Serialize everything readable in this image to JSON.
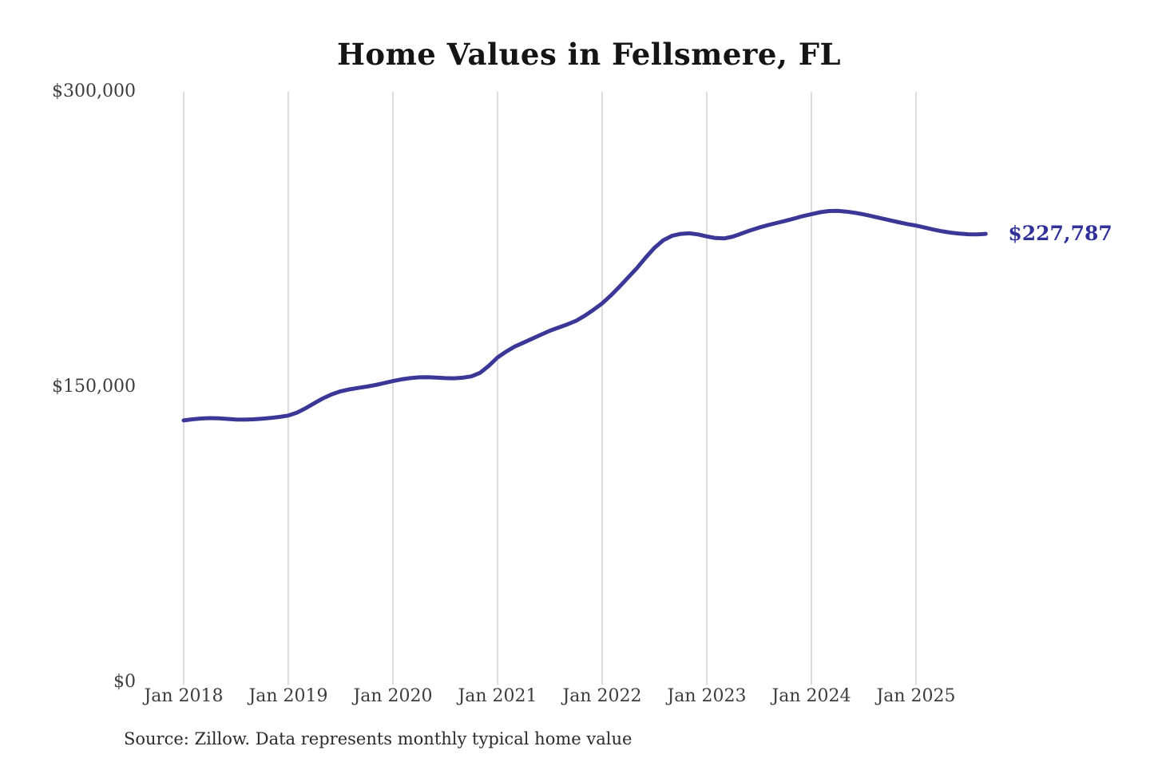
{
  "page": {
    "background": "#ffffff"
  },
  "chart_data": {
    "type": "line",
    "title": "Home Values in Fellsmere, FL",
    "source_note": "Source: Zillow. Data represents monthly typical home value",
    "end_label": "$227,787",
    "end_value": 227787,
    "xlabel": "",
    "ylabel": "",
    "ylim": [
      0,
      300000
    ],
    "grid": "vertical-only",
    "legend_position": "none",
    "colors": {
      "line": "#3a3797",
      "annotation": "#31319a",
      "gridline": "#c9c9c9",
      "tick_label": "#3d3d3d",
      "title": "#151515",
      "source": "#2b2b2b"
    },
    "y_ticks": [
      {
        "value": 0,
        "label": "$0"
      },
      {
        "value": 150000,
        "label": "$150,000"
      },
      {
        "value": 300000,
        "label": "$300,000"
      }
    ],
    "x_ticks": [
      {
        "month_index": 0,
        "label": "Jan 2018"
      },
      {
        "month_index": 12,
        "label": "Jan 2019"
      },
      {
        "month_index": 24,
        "label": "Jan 2020"
      },
      {
        "month_index": 36,
        "label": "Jan 2021"
      },
      {
        "month_index": 48,
        "label": "Jan 2022"
      },
      {
        "month_index": 60,
        "label": "Jan 2023"
      },
      {
        "month_index": 72,
        "label": "Jan 2024"
      },
      {
        "month_index": 84,
        "label": "Jan 2025"
      }
    ],
    "series": [
      {
        "name": "Monthly typical home value",
        "start": "Jan 2018",
        "frequency": "monthly",
        "values": [
          133000,
          133600,
          134000,
          134200,
          134100,
          133800,
          133500,
          133400,
          133600,
          133900,
          134300,
          134800,
          135500,
          137000,
          139200,
          141800,
          144300,
          146300,
          147800,
          148800,
          149500,
          150200,
          151000,
          152000,
          153000,
          153900,
          154500,
          154900,
          155000,
          154800,
          154500,
          154400,
          154700,
          155400,
          157200,
          160800,
          165000,
          168000,
          170600,
          172600,
          174600,
          176600,
          178600,
          180200,
          181800,
          183600,
          186200,
          189200,
          192500,
          196500,
          201000,
          205800,
          210500,
          215800,
          220700,
          224500,
          226800,
          227800,
          228100,
          227500,
          226500,
          225700,
          225500,
          226400,
          228000,
          229600,
          231000,
          232200,
          233300,
          234400,
          235600,
          236800,
          237800,
          238800,
          239400,
          239500,
          239100,
          238500,
          237700,
          236700,
          235700,
          234700,
          233700,
          232800,
          232000,
          231000,
          230000,
          229100,
          228400,
          227900,
          227600,
          227500,
          227787
        ]
      }
    ]
  }
}
